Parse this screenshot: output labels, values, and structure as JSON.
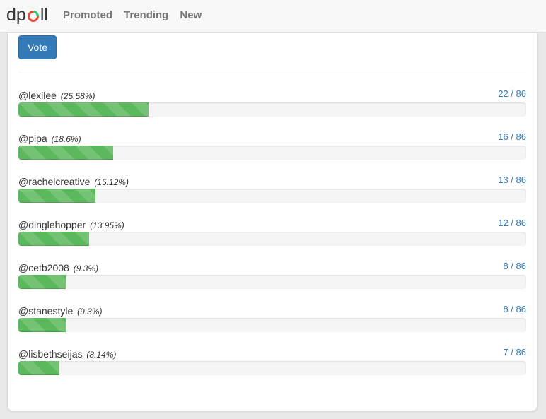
{
  "brand": {
    "text_before": "dp",
    "text_after": "ll",
    "logo_colors": [
      "#e74c3c",
      "#2ecc71"
    ]
  },
  "nav": {
    "items": [
      {
        "label": "Promoted"
      },
      {
        "label": "Trending"
      },
      {
        "label": "New"
      }
    ]
  },
  "vote_button": {
    "label": "Vote"
  },
  "results": [
    {
      "user": "@lexilee",
      "percent": "(25.58%)",
      "count": "22 / 86",
      "fraction": 0.2558
    },
    {
      "user": "@pipa",
      "percent": "(18.6%)",
      "count": "16 / 86",
      "fraction": 0.186
    },
    {
      "user": "@rachelcreative",
      "percent": "(15.12%)",
      "count": "13 / 86",
      "fraction": 0.1512
    },
    {
      "user": "@dinglehopper",
      "percent": "(13.95%)",
      "count": "12 / 86",
      "fraction": 0.1395
    },
    {
      "user": "@cetb2008",
      "percent": "(9.3%)",
      "count": "8 / 86",
      "fraction": 0.093
    },
    {
      "user": "@stanestyle",
      "percent": "(9.3%)",
      "count": "8 / 86",
      "fraction": 0.093
    },
    {
      "user": "@lisbethseijas",
      "percent": "(8.14%)",
      "count": "7 / 86",
      "fraction": 0.0814
    }
  ],
  "colors": {
    "accent": "#337ab7",
    "bar": "#5cb85c",
    "track": "#f5f5f5"
  }
}
